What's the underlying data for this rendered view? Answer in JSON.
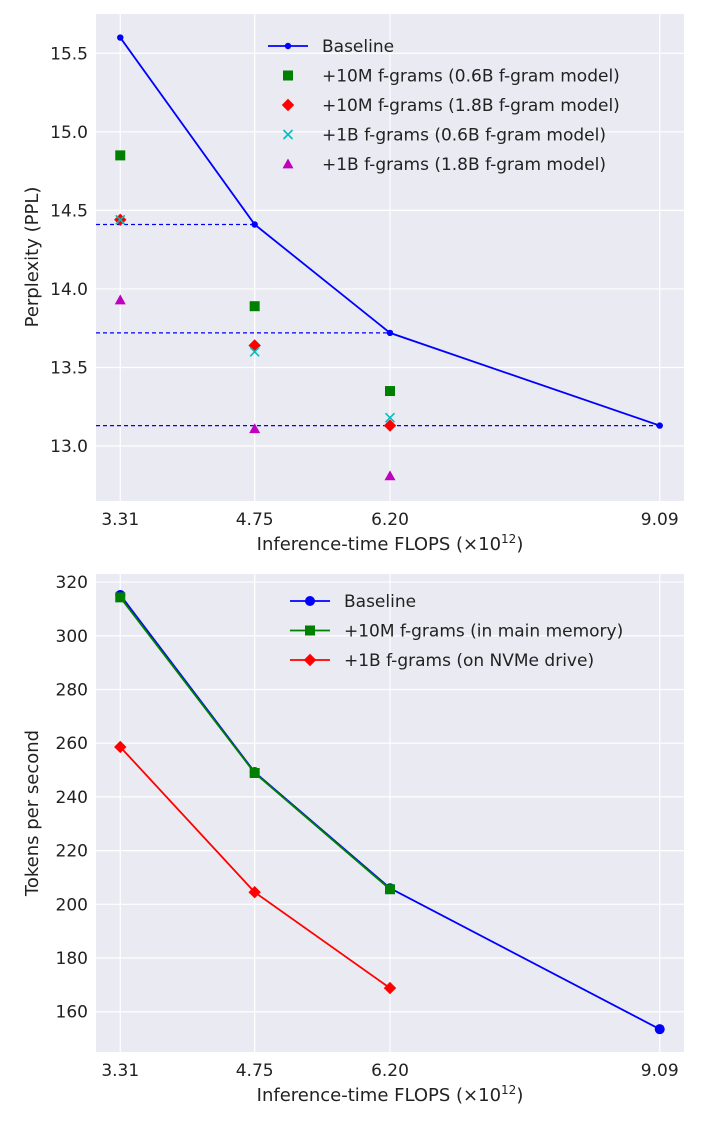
{
  "chart_data": [
    {
      "type": "line",
      "title": "",
      "xlabel": "Inference-time FLOPS (×10",
      "xlabel_exponent": "12",
      "xlabel_suffix": ")",
      "ylabel": "Perplexity (PPL)",
      "x_ticks": [
        3.31,
        4.75,
        6.2,
        9.09
      ],
      "x_tick_labels": [
        "3.31",
        "4.75",
        "6.20",
        "9.09"
      ],
      "y_ticks": [
        13.0,
        13.5,
        14.0,
        14.5,
        15.0,
        15.5
      ],
      "y_tick_labels": [
        "13.0",
        "13.5",
        "14.0",
        "14.5",
        "15.0",
        "15.5"
      ],
      "xlim": [
        3.05,
        9.35
      ],
      "ylim": [
        12.65,
        15.75
      ],
      "grid": true,
      "legend_position": "top-right",
      "series": [
        {
          "name": "Baseline",
          "color": "#0000ff",
          "marker": "dot",
          "line": true,
          "x": [
            3.31,
            4.75,
            6.2,
            9.09
          ],
          "y": [
            15.6,
            14.41,
            13.72,
            13.13
          ]
        },
        {
          "name": "+10M f-grams (0.6B f-gram model)",
          "color": "#008000",
          "marker": "square",
          "line": false,
          "x": [
            3.31,
            4.75,
            6.2
          ],
          "y": [
            14.85,
            13.89,
            13.35
          ]
        },
        {
          "name": "+10M f-grams (1.8B f-gram model)",
          "color": "#ff0000",
          "marker": "diamond",
          "line": false,
          "x": [
            3.31,
            4.75,
            6.2
          ],
          "y": [
            14.44,
            13.64,
            13.13
          ]
        },
        {
          "name": "+1B f-grams (0.6B f-gram model)",
          "color": "#00bfbf",
          "marker": "x",
          "line": false,
          "x": [
            3.31,
            4.75,
            6.2
          ],
          "y": [
            14.44,
            13.6,
            13.18
          ]
        },
        {
          "name": "+1B f-grams (1.8B f-gram model)",
          "color": "#bf00bf",
          "marker": "triangle",
          "line": false,
          "x": [
            3.31,
            4.75,
            6.2
          ],
          "y": [
            13.93,
            13.11,
            12.81
          ]
        }
      ],
      "reference_lines": [
        {
          "y": 14.41,
          "x_from": 3.05,
          "x_to": 4.75,
          "color": "#0000ff",
          "style": "dashed"
        },
        {
          "y": 13.72,
          "x_from": 3.05,
          "x_to": 6.2,
          "color": "#0000ff",
          "style": "dashed"
        },
        {
          "y": 13.13,
          "x_from": 3.05,
          "x_to": 9.09,
          "color": "#0000ff",
          "style": "dashed"
        }
      ]
    },
    {
      "type": "line",
      "title": "",
      "xlabel": "Inference-time FLOPS (×10",
      "xlabel_exponent": "12",
      "xlabel_suffix": ")",
      "ylabel": "Tokens per second",
      "x_ticks": [
        3.31,
        4.75,
        6.2,
        9.09
      ],
      "x_tick_labels": [
        "3.31",
        "4.75",
        "6.20",
        "9.09"
      ],
      "y_ticks": [
        160,
        180,
        200,
        220,
        240,
        260,
        280,
        300,
        320
      ],
      "y_tick_labels": [
        "160",
        "180",
        "200",
        "220",
        "240",
        "260",
        "280",
        "300",
        "320"
      ],
      "xlim": [
        3.05,
        9.35
      ],
      "ylim": [
        145,
        323
      ],
      "grid": true,
      "legend_position": "top-right",
      "series": [
        {
          "name": "Baseline",
          "color": "#0000ff",
          "marker": "circle",
          "line": true,
          "x": [
            3.31,
            4.75,
            6.2,
            9.09
          ],
          "y": [
            315.2,
            249.2,
            206.0,
            153.5
          ]
        },
        {
          "name": "+10M f-grams (in main memory)",
          "color": "#008000",
          "marker": "square",
          "line": true,
          "x": [
            3.31,
            4.75,
            6.2
          ],
          "y": [
            314.3,
            248.9,
            205.6
          ]
        },
        {
          "name": "+1B f-grams (on NVMe drive)",
          "color": "#ff0000",
          "marker": "diamond",
          "line": true,
          "x": [
            3.31,
            4.75,
            6.2
          ],
          "y": [
            258.6,
            204.5,
            168.8
          ]
        }
      ],
      "reference_lines": []
    }
  ]
}
